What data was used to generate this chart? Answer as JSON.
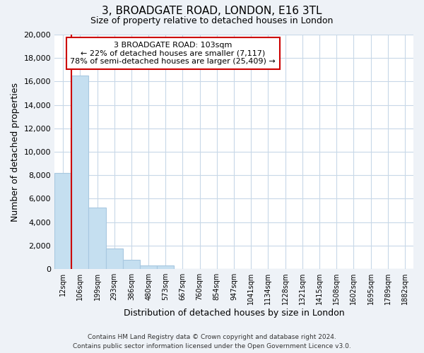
{
  "title": "3, BROADGATE ROAD, LONDON, E16 3TL",
  "subtitle": "Size of property relative to detached houses in London",
  "xlabel": "Distribution of detached houses by size in London",
  "ylabel": "Number of detached properties",
  "categories": [
    "12sqm",
    "106sqm",
    "199sqm",
    "293sqm",
    "386sqm",
    "480sqm",
    "573sqm",
    "667sqm",
    "760sqm",
    "854sqm",
    "947sqm",
    "1041sqm",
    "1134sqm",
    "1228sqm",
    "1321sqm",
    "1415sqm",
    "1508sqm",
    "1602sqm",
    "1695sqm",
    "1789sqm",
    "1882sqm"
  ],
  "bar_values": [
    8200,
    16500,
    5250,
    1750,
    800,
    300,
    280,
    0,
    0,
    0,
    0,
    0,
    0,
    0,
    0,
    0,
    0,
    0,
    0,
    0,
    0
  ],
  "bar_color": "#c5dff0",
  "bar_edge_color": "#a8c8e0",
  "property_line_color": "#cc0000",
  "ylim": [
    0,
    20000
  ],
  "yticks": [
    0,
    2000,
    4000,
    6000,
    8000,
    10000,
    12000,
    14000,
    16000,
    18000,
    20000
  ],
  "annotation_line1": "3 BROADGATE ROAD: 103sqm",
  "annotation_line2": "← 22% of detached houses are smaller (7,117)",
  "annotation_line3": "78% of semi-detached houses are larger (25,409) →",
  "annotation_box_color": "#ffffff",
  "annotation_box_edge_color": "#cc0000",
  "footer_line1": "Contains HM Land Registry data © Crown copyright and database right 2024.",
  "footer_line2": "Contains public sector information licensed under the Open Government Licence v3.0.",
  "background_color": "#eef2f7",
  "plot_bg_color": "#ffffff",
  "grid_color": "#c8d8e8"
}
